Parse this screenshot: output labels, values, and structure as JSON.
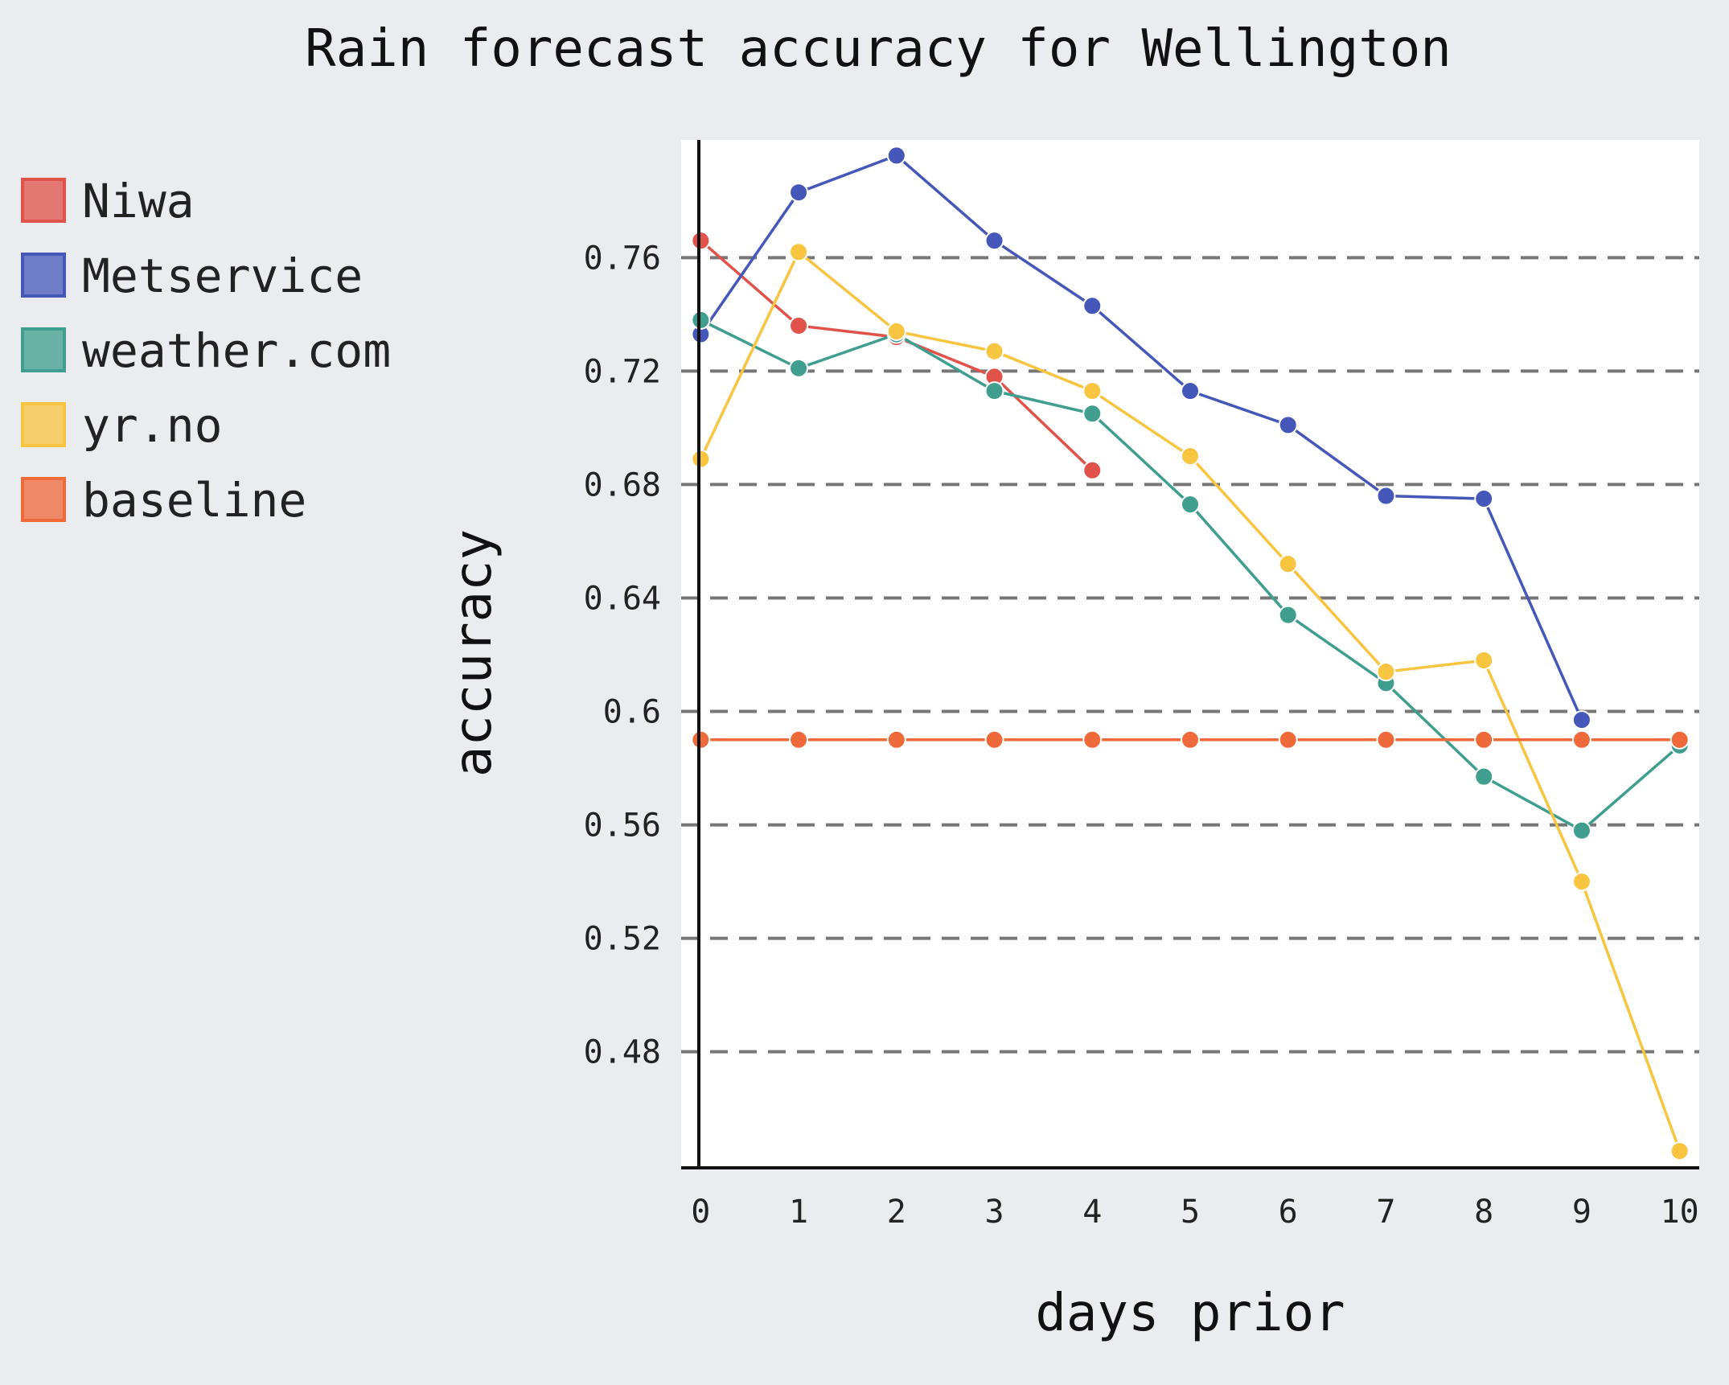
{
  "chart_data": {
    "type": "line",
    "title": "Rain forecast accuracy for Wellington",
    "xlabel": "days prior",
    "ylabel": "accuracy",
    "x": [
      0,
      1,
      2,
      3,
      4,
      5,
      6,
      7,
      8,
      9,
      10
    ],
    "x_tick_labels": [
      "0",
      "1",
      "2",
      "3",
      "4",
      "5",
      "6",
      "7",
      "8",
      "9",
      "10"
    ],
    "y_tick_values": [
      0.48,
      0.52,
      0.56,
      0.6,
      0.64,
      0.68,
      0.72,
      0.76
    ],
    "y_tick_labels": [
      "0.48",
      "0.52",
      "0.56",
      "0.6",
      "0.64",
      "0.68",
      "0.72",
      "0.76"
    ],
    "xlim": [
      -0.2,
      10.2
    ],
    "ylim": [
      0.4385,
      0.8015
    ],
    "grid": "horizontal dashed",
    "legend_position": "left",
    "series": [
      {
        "name": "Niwa",
        "color": "#e0524a",
        "values": [
          0.766,
          0.736,
          0.732,
          0.718,
          0.685,
          null,
          null,
          null,
          null,
          null,
          null
        ]
      },
      {
        "name": "Metservice",
        "color": "#4557b8",
        "values": [
          0.733,
          0.783,
          0.796,
          0.766,
          0.743,
          0.713,
          0.701,
          0.676,
          0.675,
          0.597,
          null
        ]
      },
      {
        "name": "weather.com",
        "color": "#3f9e8e",
        "values": [
          0.738,
          0.721,
          0.733,
          0.713,
          0.705,
          0.673,
          0.634,
          0.61,
          0.577,
          0.558,
          0.588
        ]
      },
      {
        "name": "yr.no",
        "color": "#f7c540",
        "values": [
          0.689,
          0.762,
          0.734,
          0.727,
          0.713,
          0.69,
          0.652,
          0.614,
          0.618,
          0.54,
          0.445
        ]
      },
      {
        "name": "baseline",
        "color": "#ef6a3a",
        "values": [
          0.59,
          0.59,
          0.59,
          0.59,
          0.59,
          0.59,
          0.59,
          0.59,
          0.59,
          0.59,
          0.59
        ]
      }
    ]
  }
}
